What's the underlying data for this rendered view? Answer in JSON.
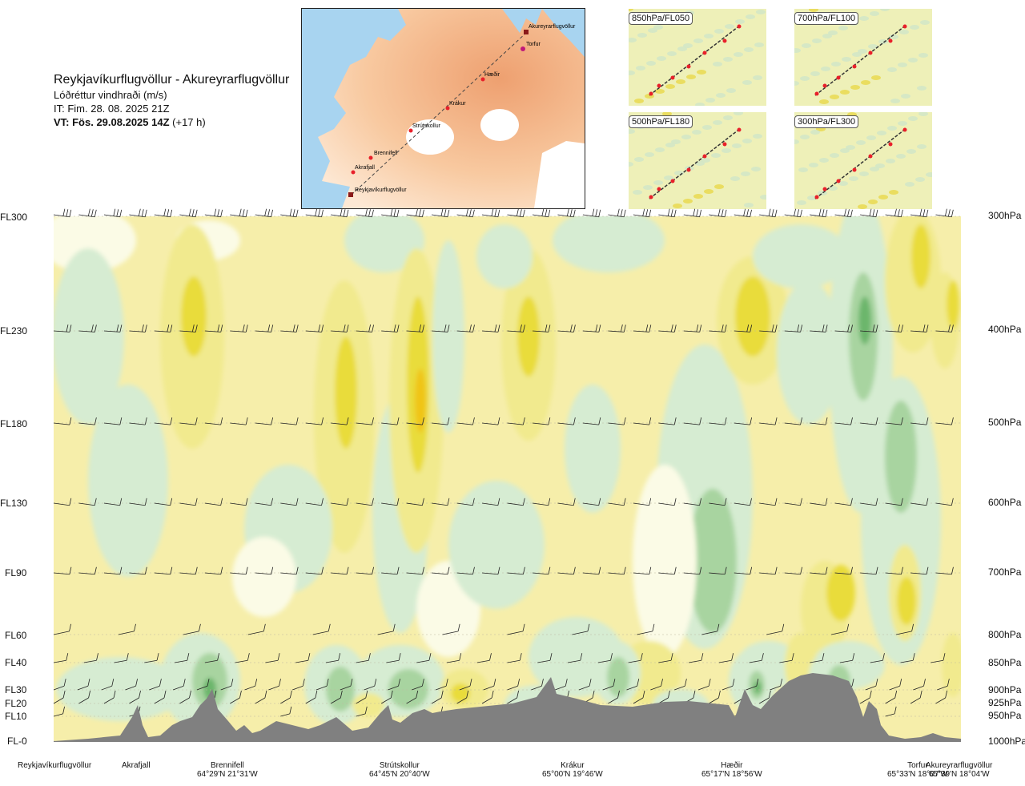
{
  "header": {
    "route": "Reykjavíkurflugvöllur - Akureyrarflugvöllur",
    "variable": "Lóðréttur vindhraði (m/s)",
    "issue_time": "IT: Fim. 28. 08. 2025 21Z",
    "valid_label": "VT: Fös. 29.08.2025 14Z",
    "valid_offset": "(+17 h)"
  },
  "route_map": {
    "waypoints": [
      {
        "name": "Akureyrarflugvöllur",
        "kind": "airport"
      },
      {
        "name": "Torfur",
        "kind": "point"
      },
      {
        "name": "Hæðir",
        "kind": "point"
      },
      {
        "name": "Krákur",
        "kind": "point"
      },
      {
        "name": "Strútskollur",
        "kind": "point"
      },
      {
        "name": "Brennifell",
        "kind": "point"
      },
      {
        "name": "Akrafjall",
        "kind": "point"
      },
      {
        "name": "Reykjavíkurflugvöllur",
        "kind": "airport"
      }
    ],
    "colors": {
      "sea": "#a8d4f0",
      "land_low": "#fbe4cc",
      "land_high": "#f0a878",
      "glacier": "#ffffff",
      "route": "#444444",
      "point": "#e8202a"
    }
  },
  "level_maps": [
    {
      "label": "850hPa/FL050"
    },
    {
      "label": "700hPa/FL100"
    },
    {
      "label": "500hPa/FL180"
    },
    {
      "label": "300hPa/FL300"
    }
  ],
  "chart_data": {
    "type": "heatmap",
    "title": "Lóðréttur vindhraði (m/s)",
    "y_axis_left": {
      "ticks": [
        "FL300",
        "FL230",
        "FL180",
        "FL130",
        "FL90",
        "FL60",
        "FL40",
        "FL30",
        "FL20",
        "FL10",
        "FL-0"
      ]
    },
    "y_axis_right": {
      "ticks": [
        "300hPa",
        "400hPa",
        "500hPa",
        "600hPa",
        "700hPa",
        "800hPa",
        "850hPa",
        "900hPa",
        "925hPa",
        "950hPa",
        "1000hPa"
      ]
    },
    "x_locations": [
      {
        "name": "Reykjavíkurflugvöllur",
        "coord": ""
      },
      {
        "name": "Akrafjall",
        "coord": ""
      },
      {
        "name": "Brennifell",
        "coord": "64°29'N 21°31'W"
      },
      {
        "name": "Strútskollur",
        "coord": "64°45'N 20°40'W"
      },
      {
        "name": "Krákur",
        "coord": "65°00'N 19°46'W"
      },
      {
        "name": "Hæðir",
        "coord": "65°17'N 18°56'W"
      },
      {
        "name": "Torfur",
        "coord": "65°33'N 18°07'W"
      },
      {
        "name": "Akureyrarflugvöllur",
        "coord": "65°39'N 18°04'W"
      }
    ],
    "fill_colors": {
      "background": "#f6eeaa",
      "up_light": "#f1ea8e",
      "up_mid": "#e9dc3a",
      "up_strong": "#f0c418",
      "down_faint": "#fbfbe6",
      "down_light": "#d6ecd2",
      "down_mid": "#a8d4a0",
      "down_strong": "#6cb66c",
      "terrain": "#808080",
      "barb": "#222222"
    }
  }
}
